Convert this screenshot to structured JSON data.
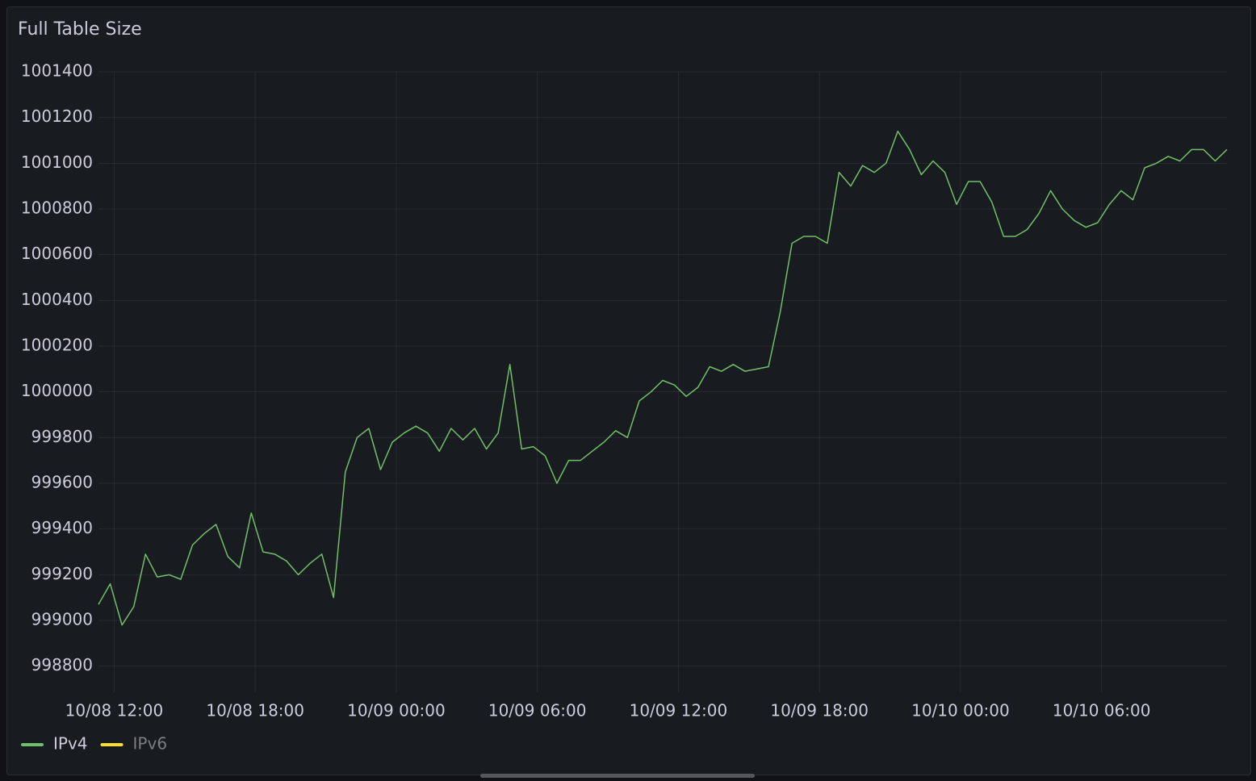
{
  "chart_data": {
    "type": "line",
    "title": "Full Table Size",
    "x": [
      "10/08 11:20",
      "10/08 11:50",
      "10/08 12:20",
      "10/08 12:50",
      "10/08 13:20",
      "10/08 13:50",
      "10/08 14:20",
      "10/08 14:50",
      "10/08 15:20",
      "10/08 15:50",
      "10/08 16:20",
      "10/08 16:50",
      "10/08 17:20",
      "10/08 17:50",
      "10/08 18:20",
      "10/08 18:50",
      "10/08 19:20",
      "10/08 19:50",
      "10/08 20:20",
      "10/08 20:50",
      "10/08 21:20",
      "10/08 21:50",
      "10/08 22:20",
      "10/08 22:50",
      "10/08 23:20",
      "10/08 23:50",
      "10/09 00:20",
      "10/09 00:50",
      "10/09 01:20",
      "10/09 01:50",
      "10/09 02:20",
      "10/09 02:50",
      "10/09 03:20",
      "10/09 03:50",
      "10/09 04:20",
      "10/09 04:50",
      "10/09 05:20",
      "10/09 05:50",
      "10/09 06:20",
      "10/09 06:50",
      "10/09 07:20",
      "10/09 07:50",
      "10/09 08:20",
      "10/09 08:50",
      "10/09 09:20",
      "10/09 09:50",
      "10/09 10:20",
      "10/09 10:50",
      "10/09 11:20",
      "10/09 11:50",
      "10/09 12:20",
      "10/09 12:50",
      "10/09 13:20",
      "10/09 13:50",
      "10/09 14:20",
      "10/09 14:50",
      "10/09 15:20",
      "10/09 15:50",
      "10/09 16:20",
      "10/09 16:50",
      "10/09 17:20",
      "10/09 17:50",
      "10/09 18:20",
      "10/09 18:50",
      "10/09 19:20",
      "10/09 19:50",
      "10/09 20:20",
      "10/09 20:50",
      "10/09 21:20",
      "10/09 21:50",
      "10/09 22:20",
      "10/09 22:50",
      "10/09 23:20",
      "10/09 23:50",
      "10/10 00:20",
      "10/10 00:50",
      "10/10 01:20",
      "10/10 01:50",
      "10/10 02:20",
      "10/10 02:50",
      "10/10 03:20",
      "10/10 03:50",
      "10/10 04:20",
      "10/10 04:50",
      "10/10 05:20",
      "10/10 05:50",
      "10/10 06:20",
      "10/10 06:50",
      "10/10 07:20",
      "10/10 07:50",
      "10/10 08:20",
      "10/10 08:50",
      "10/10 09:20",
      "10/10 09:50",
      "10/10 10:20",
      "10/10 10:50",
      "10/10 11:20"
    ],
    "series": [
      {
        "name": "IPv4",
        "color": "#73bf69",
        "values": [
          999070,
          999160,
          998980,
          999060,
          999290,
          999190,
          999200,
          999180,
          999330,
          999380,
          999420,
          999280,
          999230,
          999470,
          999300,
          999290,
          999260,
          999200,
          999250,
          999290,
          999100,
          999650,
          999800,
          999840,
          999660,
          999780,
          999820,
          999850,
          999820,
          999740,
          999840,
          999790,
          999840,
          999750,
          999820,
          1000120,
          999750,
          999760,
          999720,
          999600,
          999700,
          999700,
          999740,
          999780,
          999830,
          999800,
          999960,
          1000000,
          1000050,
          1000030,
          999980,
          1000020,
          1000110,
          1000090,
          1000120,
          1000090,
          1000100,
          1000110,
          1000350,
          1000650,
          1000680,
          1000680,
          1000650,
          1000960,
          1000900,
          1000990,
          1000960,
          1001000,
          1001140,
          1001060,
          1000950,
          1001010,
          1000960,
          1000820,
          1000920,
          1000920,
          1000830,
          1000680,
          1000680,
          1000710,
          1000780,
          1000880,
          1000800,
          1000750,
          1000720,
          1000740,
          1000820,
          1000880,
          1000840,
          1000980,
          1001000,
          1001030,
          1001010,
          1001060,
          1001060,
          1001010,
          1001060
        ]
      },
      {
        "name": "IPv6",
        "color": "#fade2a",
        "hidden": true
      }
    ],
    "xlim": [
      "10/08 11:20",
      "10/10 11:20"
    ],
    "xticks": [
      "10/08 12:00",
      "10/08 18:00",
      "10/09 00:00",
      "10/09 06:00",
      "10/09 12:00",
      "10/09 18:00",
      "10/10 00:00",
      "10/10 06:00"
    ],
    "ylim": [
      998700,
      1001400
    ],
    "yticks": [
      998800,
      999000,
      999200,
      999400,
      999600,
      999800,
      1000000,
      1000200,
      1000400,
      1000600,
      1000800,
      1001000,
      1001200,
      1001400
    ],
    "grid": true
  }
}
